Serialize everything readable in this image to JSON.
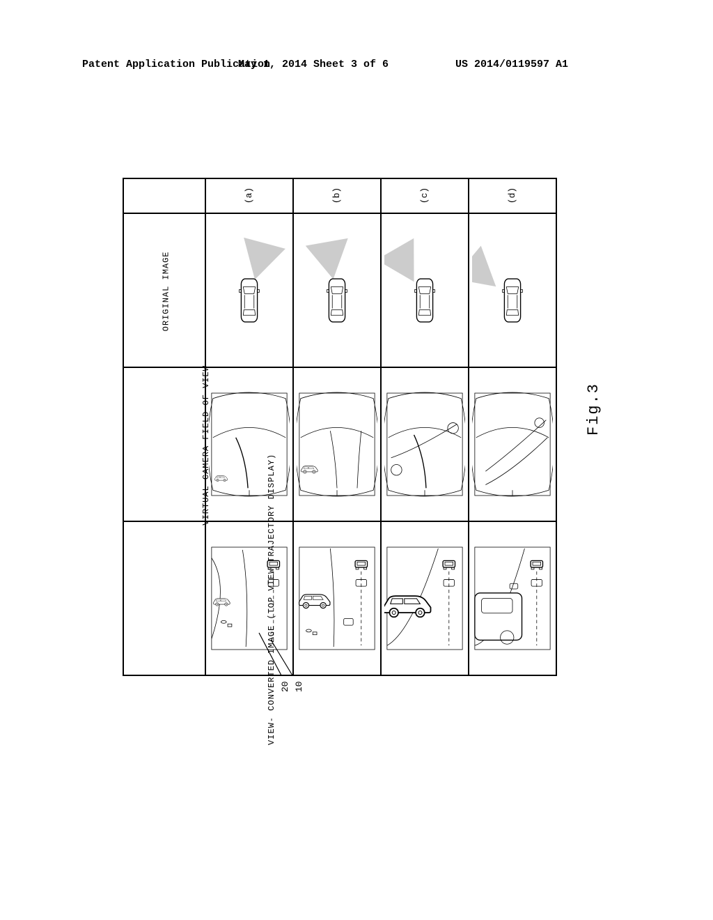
{
  "header": {
    "left": "Patent Application Publication",
    "center": "May 1, 2014  Sheet 3 of 6",
    "right": "US 2014/0119597 A1"
  },
  "figure_label": "Fig.3",
  "row_headers": {
    "r1": "ORIGINAL\nIMAGE",
    "r2": "VIRTUAL\nCAMERA\nFIELD\nOF VIEW",
    "r3": "VIEW-\nCONVERTED\nIMAGE\n(TOP VIEW\nTRAJECTORY\nDISPLAY)"
  },
  "col_headers": {
    "a": "(a)",
    "b": "(b)",
    "c": "(c)",
    "d": "(d)"
  },
  "annotations": {
    "ref20": "20",
    "ref10": "10"
  },
  "colors": {
    "stroke": "#000000",
    "bg": "#ffffff",
    "fov_fill": "#cccccc",
    "car_fill": "#ffffff"
  },
  "style": {
    "line_width": 1.4,
    "line_width_thin": 0.8,
    "font_family": "Courier New, monospace"
  },
  "fov_angles": {
    "a": 15,
    "b": -10,
    "c": -30,
    "d": -50
  }
}
